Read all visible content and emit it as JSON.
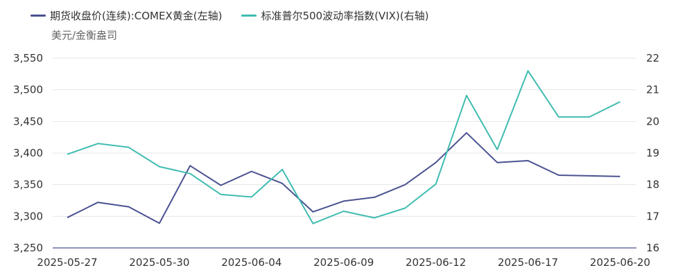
{
  "chart_data": {
    "type": "line",
    "unit_label": "美元/金衡盎司",
    "x_tick_labels": [
      "2025-05-27",
      "2025-05-30",
      "2025-06-04",
      "2025-06-09",
      "2025-06-12",
      "2025-06-17",
      "2025-06-20"
    ],
    "x": [
      "2025-05-27",
      "2025-05-28",
      "2025-05-29",
      "2025-05-30",
      "2025-06-02",
      "2025-06-03",
      "2025-06-04",
      "2025-06-05",
      "2025-06-06",
      "2025-06-09",
      "2025-06-10",
      "2025-06-11",
      "2025-06-12",
      "2025-06-13",
      "2025-06-16",
      "2025-06-17",
      "2025-06-18",
      "2025-06-19",
      "2025-06-20"
    ],
    "y_left": {
      "ticks": [
        "3,250",
        "3,300",
        "3,350",
        "3,400",
        "3,450",
        "3,500",
        "3,550"
      ],
      "ylim": [
        3250,
        3550
      ]
    },
    "y_right": {
      "ticks": [
        "16",
        "17",
        "18",
        "19",
        "20",
        "21",
        "22"
      ],
      "ylim": [
        16,
        22
      ]
    },
    "series": [
      {
        "name": "期货收盘价(连续):COMEX黄金(左轴)",
        "axis": "left",
        "color": "#4a5190",
        "values": [
          3298,
          3322,
          3315,
          3289,
          3380,
          3349,
          3371,
          3352,
          3307,
          3324,
          3330,
          3350,
          3385,
          3432,
          3385,
          3388,
          3365,
          3364,
          3363
        ]
      },
      {
        "name": "标准普尔500波动率指数(VIX)(右轴)",
        "axis": "right",
        "color": "#3fbcb0",
        "values": [
          18.96,
          19.3,
          19.18,
          18.57,
          18.35,
          17.69,
          17.61,
          18.48,
          16.77,
          17.16,
          16.95,
          17.26,
          18.02,
          20.82,
          19.11,
          21.6,
          20.14,
          20.14,
          20.62
        ]
      }
    ],
    "grid": true,
    "legend_position": "top-left"
  }
}
